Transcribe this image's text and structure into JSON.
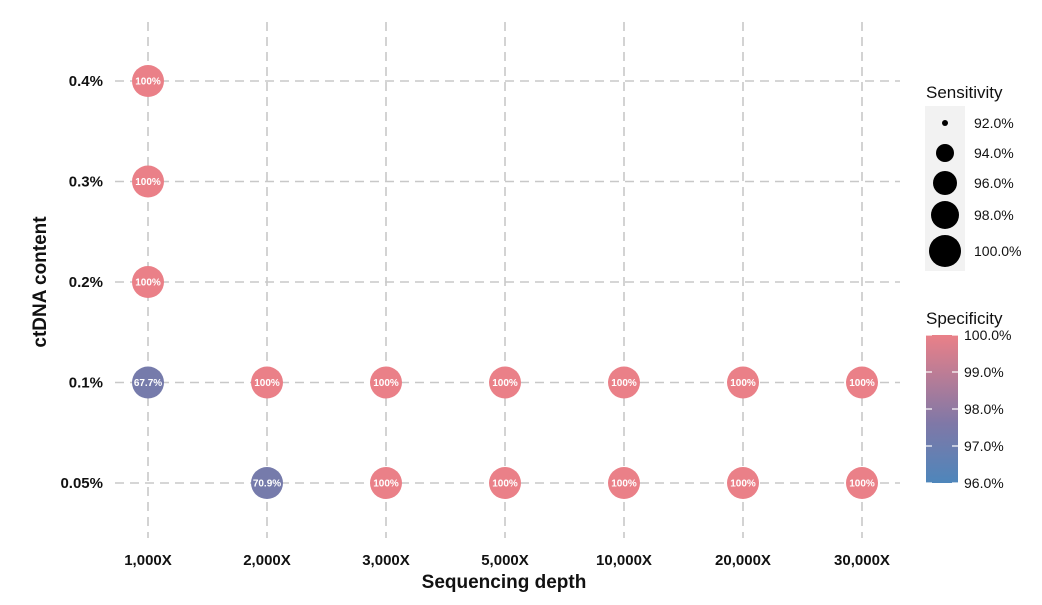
{
  "chart_data": {
    "type": "scatter",
    "xlabel": "Sequencing depth",
    "ylabel": "ctDNA content",
    "x_categories": [
      "1,000X",
      "2,000X",
      "3,000X",
      "5,000X",
      "10,000X",
      "20,000X",
      "30,000X"
    ],
    "y_categories": [
      "0.05%",
      "0.1%",
      "0.2%",
      "0.3%",
      "0.4%"
    ],
    "grid": true,
    "points": [
      {
        "x": "1,000X",
        "y": "0.4%",
        "label": "100%",
        "specificity": 100.0
      },
      {
        "x": "1,000X",
        "y": "0.3%",
        "label": "100%",
        "specificity": 100.0
      },
      {
        "x": "1,000X",
        "y": "0.2%",
        "label": "100%",
        "specificity": 100.0
      },
      {
        "x": "1,000X",
        "y": "0.1%",
        "label": "67.7%",
        "specificity": 97.3
      },
      {
        "x": "2,000X",
        "y": "0.1%",
        "label": "100%",
        "specificity": 100.0
      },
      {
        "x": "3,000X",
        "y": "0.1%",
        "label": "100%",
        "specificity": 100.0
      },
      {
        "x": "5,000X",
        "y": "0.1%",
        "label": "100%",
        "specificity": 100.0
      },
      {
        "x": "10,000X",
        "y": "0.1%",
        "label": "100%",
        "specificity": 100.0
      },
      {
        "x": "20,000X",
        "y": "0.1%",
        "label": "100%",
        "specificity": 100.0
      },
      {
        "x": "30,000X",
        "y": "0.1%",
        "label": "100%",
        "specificity": 100.0
      },
      {
        "x": "2,000X",
        "y": "0.05%",
        "label": "70.9%",
        "specificity": 97.3
      },
      {
        "x": "3,000X",
        "y": "0.05%",
        "label": "100%",
        "specificity": 100.0
      },
      {
        "x": "5,000X",
        "y": "0.05%",
        "label": "100%",
        "specificity": 100.0
      },
      {
        "x": "10,000X",
        "y": "0.05%",
        "label": "100%",
        "specificity": 100.0
      },
      {
        "x": "20,000X",
        "y": "0.05%",
        "label": "100%",
        "specificity": 100.0
      },
      {
        "x": "30,000X",
        "y": "0.05%",
        "label": "100%",
        "specificity": 100.0
      }
    ],
    "size_legend": {
      "title": "Sensitivity",
      "values": [
        92.0,
        94.0,
        96.0,
        98.0,
        100.0
      ],
      "labels": [
        "92.0%",
        "94.0%",
        "96.0%",
        "98.0%",
        "100.0%"
      ]
    },
    "color_legend": {
      "title": "Specificity",
      "range": [
        96.0,
        100.0
      ],
      "labels": [
        "100.0%",
        "99.0%",
        "98.0%",
        "97.0%",
        "96.0%"
      ],
      "tick_values": [
        100.0,
        99.0,
        98.0,
        97.0,
        96.0
      ],
      "color_high": "#ea8088",
      "color_mid": "#7f78a7",
      "color_low": "#4e86bb"
    },
    "legend_placement": "right"
  }
}
